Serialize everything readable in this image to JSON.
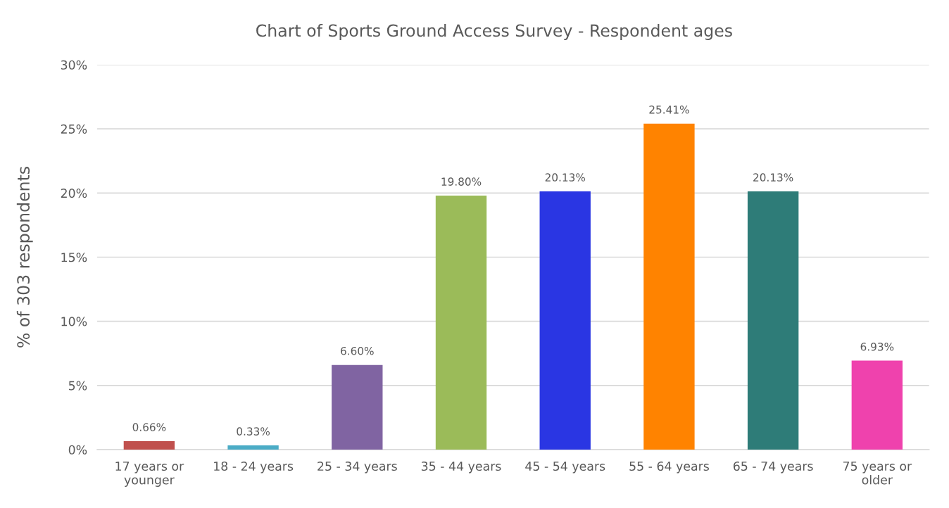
{
  "chart_data": {
    "type": "bar",
    "title": "Chart of Sports Ground Access Survey - Respondent ages",
    "ylabel": "% of 303 respondents",
    "categories": [
      "17 years or\nyounger",
      "18 - 24 years",
      "25 - 34 years",
      "35 - 44 years",
      "45 - 54 years",
      "55 - 64 years",
      "65 - 74 years",
      "75 years or\nolder"
    ],
    "values": [
      0.66,
      0.33,
      6.6,
      19.8,
      20.13,
      25.41,
      20.13,
      6.93
    ],
    "value_labels": [
      "0.66%",
      "0.33%",
      "6.60%",
      "19.80%",
      "20.13%",
      "25.41%",
      "20.13%",
      "6.93%"
    ],
    "colors": [
      "#c0504d",
      "#4bacc6",
      "#8064a2",
      "#9bbb59",
      "#2a36e3",
      "#ff8300",
      "#2e7c78",
      "#ef42ad"
    ],
    "ylim": [
      0,
      30
    ],
    "yticks": [
      {
        "value": 0,
        "label": "0%"
      },
      {
        "value": 5,
        "label": "5%"
      },
      {
        "value": 10,
        "label": "10%"
      },
      {
        "value": 15,
        "label": "15%"
      },
      {
        "value": 20,
        "label": "20%"
      },
      {
        "value": 25,
        "label": "25%"
      },
      {
        "value": 30,
        "label": "30%"
      }
    ],
    "grid": "y"
  }
}
